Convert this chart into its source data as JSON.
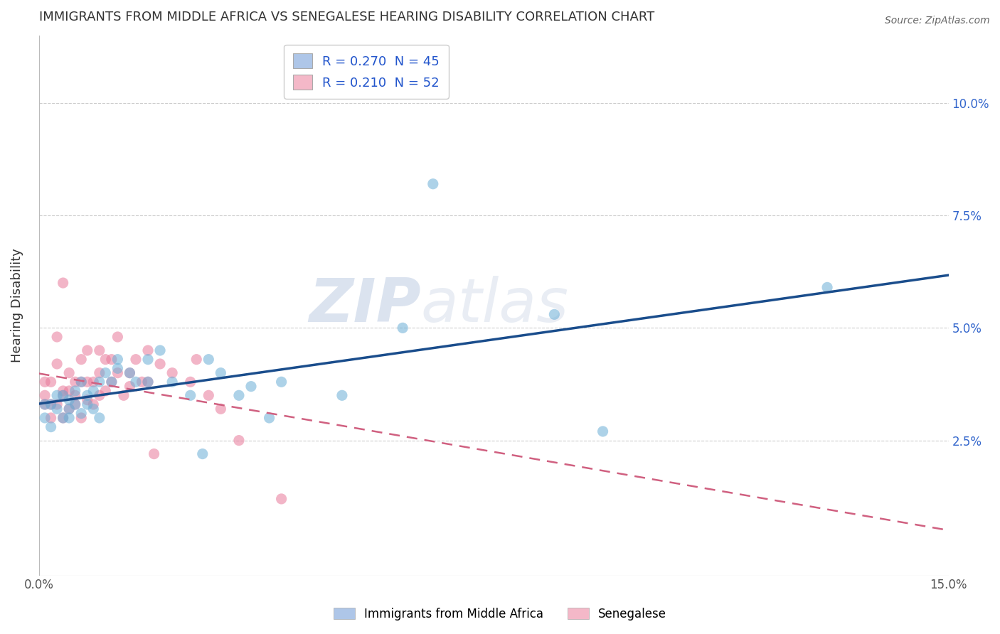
{
  "title": "IMMIGRANTS FROM MIDDLE AFRICA VS SENEGALESE HEARING DISABILITY CORRELATION CHART",
  "source": "Source: ZipAtlas.com",
  "ylabel": "Hearing Disability",
  "xlim": [
    0.0,
    0.15
  ],
  "ylim": [
    -0.005,
    0.115
  ],
  "xticks": [
    0.0,
    0.15
  ],
  "xtick_labels": [
    "0.0%",
    "15.0%"
  ],
  "yticks": [
    0.0,
    0.025,
    0.05,
    0.075,
    0.1
  ],
  "ytick_labels_right": [
    "",
    "2.5%",
    "5.0%",
    "7.5%",
    "10.0%"
  ],
  "legend1_label": "R = 0.270  N = 45",
  "legend2_label": "R = 0.210  N = 52",
  "legend1_color": "#aec6e8",
  "legend2_color": "#f4b8c8",
  "scatter1_color": "#6aaed6",
  "scatter2_color": "#e8799a",
  "line1_color": "#1a4d8c",
  "line2_color": "#d06080",
  "watermark": "ZIPatlas",
  "background_color": "#ffffff",
  "grid_color": "#cccccc",
  "blue_x": [
    0.001,
    0.001,
    0.002,
    0.002,
    0.003,
    0.003,
    0.004,
    0.004,
    0.005,
    0.005,
    0.005,
    0.006,
    0.006,
    0.007,
    0.007,
    0.008,
    0.008,
    0.009,
    0.009,
    0.01,
    0.01,
    0.011,
    0.012,
    0.013,
    0.013,
    0.015,
    0.016,
    0.018,
    0.018,
    0.02,
    0.022,
    0.025,
    0.027,
    0.028,
    0.03,
    0.033,
    0.035,
    0.038,
    0.04,
    0.05,
    0.06,
    0.065,
    0.085,
    0.093,
    0.13
  ],
  "blue_y": [
    0.03,
    0.033,
    0.033,
    0.028,
    0.032,
    0.035,
    0.035,
    0.03,
    0.032,
    0.034,
    0.03,
    0.033,
    0.036,
    0.031,
    0.038,
    0.033,
    0.035,
    0.036,
    0.032,
    0.038,
    0.03,
    0.04,
    0.038,
    0.041,
    0.043,
    0.04,
    0.038,
    0.043,
    0.038,
    0.045,
    0.038,
    0.035,
    0.022,
    0.043,
    0.04,
    0.035,
    0.037,
    0.03,
    0.038,
    0.035,
    0.05,
    0.082,
    0.053,
    0.027,
    0.059
  ],
  "pink_x": [
    0.001,
    0.001,
    0.001,
    0.002,
    0.002,
    0.002,
    0.003,
    0.003,
    0.003,
    0.004,
    0.004,
    0.004,
    0.004,
    0.005,
    0.005,
    0.005,
    0.006,
    0.006,
    0.006,
    0.007,
    0.007,
    0.007,
    0.008,
    0.008,
    0.008,
    0.009,
    0.009,
    0.01,
    0.01,
    0.01,
    0.011,
    0.011,
    0.012,
    0.012,
    0.013,
    0.013,
    0.014,
    0.015,
    0.015,
    0.016,
    0.017,
    0.018,
    0.018,
    0.019,
    0.02,
    0.022,
    0.025,
    0.026,
    0.028,
    0.03,
    0.033,
    0.04
  ],
  "pink_y": [
    0.033,
    0.035,
    0.038,
    0.03,
    0.033,
    0.038,
    0.033,
    0.042,
    0.048,
    0.03,
    0.035,
    0.036,
    0.06,
    0.032,
    0.036,
    0.04,
    0.033,
    0.035,
    0.038,
    0.03,
    0.038,
    0.043,
    0.034,
    0.038,
    0.045,
    0.033,
    0.038,
    0.035,
    0.04,
    0.045,
    0.036,
    0.043,
    0.038,
    0.043,
    0.04,
    0.048,
    0.035,
    0.037,
    0.04,
    0.043,
    0.038,
    0.038,
    0.045,
    0.022,
    0.042,
    0.04,
    0.038,
    0.043,
    0.035,
    0.032,
    0.025,
    0.012
  ]
}
